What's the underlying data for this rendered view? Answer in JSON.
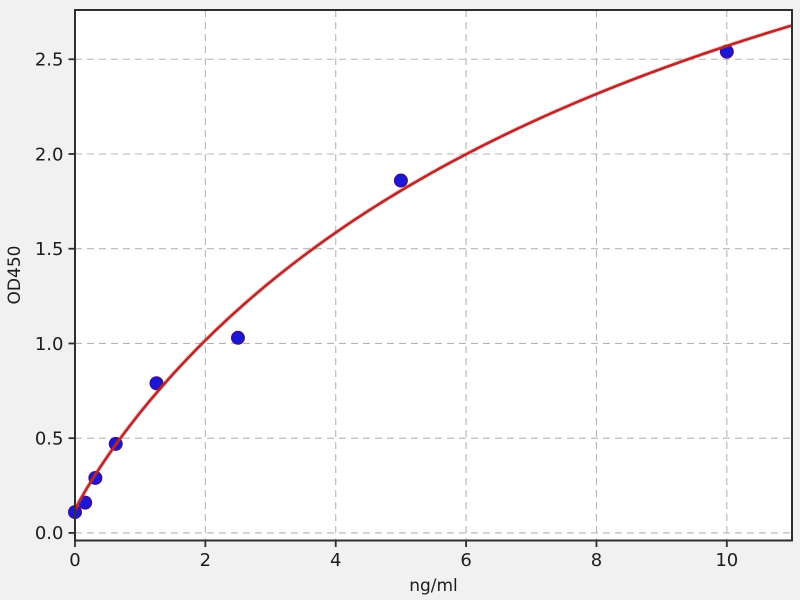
{
  "figure": {
    "background_color": "#f1f1f1",
    "plot_background_color": "#ffffff",
    "spine_color": "#2e2e2e",
    "tick_color": "#2e2e2e",
    "tick_label_color": "#1c1c1c"
  },
  "chart_data": {
    "type": "scatter",
    "title": "",
    "xlabel": "ng/ml",
    "ylabel": "OD450",
    "xlim": [
      0,
      11
    ],
    "ylim": [
      -0.04,
      2.76
    ],
    "xtick_values": [
      0,
      2,
      4,
      6,
      8,
      10
    ],
    "xtick_labels": [
      "0",
      "2",
      "4",
      "6",
      "8",
      "10"
    ],
    "ytick_values": [
      0,
      0.5,
      1.0,
      1.5,
      2.0,
      2.5
    ],
    "ytick_labels": [
      "0.0",
      "0.5",
      "1.0",
      "1.5",
      "2.0",
      "2.5"
    ],
    "grid": {
      "on": true,
      "line_style": "dashed",
      "color": "#b5b5b5"
    },
    "legend": {
      "visible": false
    },
    "series": [
      {
        "name": "standard-points",
        "type": "scatter",
        "marker": "circle",
        "fill_color": "#1a17d6",
        "edge_color": "#3c0d98",
        "x": [
          0,
          0.156,
          0.3125,
          0.625,
          1.25,
          2.5,
          5,
          10
        ],
        "y": [
          0.11,
          0.16,
          0.29,
          0.47,
          0.79,
          1.03,
          1.86,
          2.54
        ]
      },
      {
        "name": "fitted-curve",
        "type": "line",
        "color": "#b92727",
        "model": "y = y0 + vmax * x^hill / (k^hill + x^hill)",
        "params": {
          "y0": 0.12,
          "vmax": 4.9,
          "k": 10,
          "hill": 0.93
        },
        "x_start": 0,
        "x_end": 11
      }
    ]
  }
}
